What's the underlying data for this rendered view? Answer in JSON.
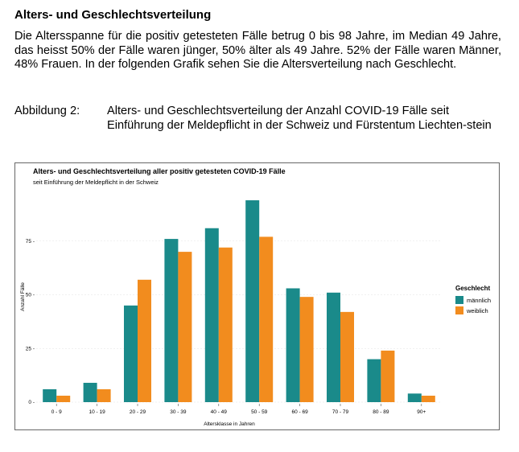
{
  "document": {
    "heading": "Alters- und Geschlechtsverteilung",
    "paragraph": "Die Altersspanne für die positiv getesteten Fälle betrug 0 bis 98 Jahre, im Median 49 Jahre, das heisst 50% der Fälle waren jünger, 50% älter als 49 Jahre. 52% der Fälle waren Männer, 48% Frauen. In der folgenden Grafik sehen Sie die Altersverteilung nach Geschlecht.",
    "figure_label": "Abbildung 2:",
    "figure_caption": "Alters- und Geschlechtsverteilung der Anzahl COVID-19 Fälle seit Einführung der Meldepflicht in der Schweiz und Fürstentum Liechten-stein"
  },
  "chart_data": {
    "type": "bar",
    "title": "Alters- und Geschlechtsverteilung aller positiv getesteten COVID-19 Fälle",
    "subtitle": "seit Einführung der Meldepflicht in der Schweiz",
    "xlabel": "Altersklasse in Jahren",
    "ylabel": "Anzahl Fälle",
    "ylim": [
      0,
      100
    ],
    "yticks": [
      0,
      25,
      50,
      75
    ],
    "ytick_labels": [
      "0 -",
      "25 -",
      "50 -",
      "75 -"
    ],
    "categories": [
      "0 - 9",
      "10 - 19",
      "20 - 29",
      "30 - 39",
      "40 - 49",
      "50 - 59",
      "60 - 69",
      "70 - 79",
      "80 - 89",
      "90+"
    ],
    "series": [
      {
        "name": "männlich",
        "color": "#1a8a8a",
        "values": [
          6,
          9,
          45,
          76,
          81,
          94,
          53,
          51,
          20,
          4
        ]
      },
      {
        "name": "weiblich",
        "color": "#f28c1e",
        "values": [
          3,
          6,
          57,
          70,
          72,
          77,
          49,
          42,
          24,
          3
        ]
      }
    ],
    "legend": {
      "title": "Geschlecht",
      "position": "right"
    },
    "grid": true
  }
}
